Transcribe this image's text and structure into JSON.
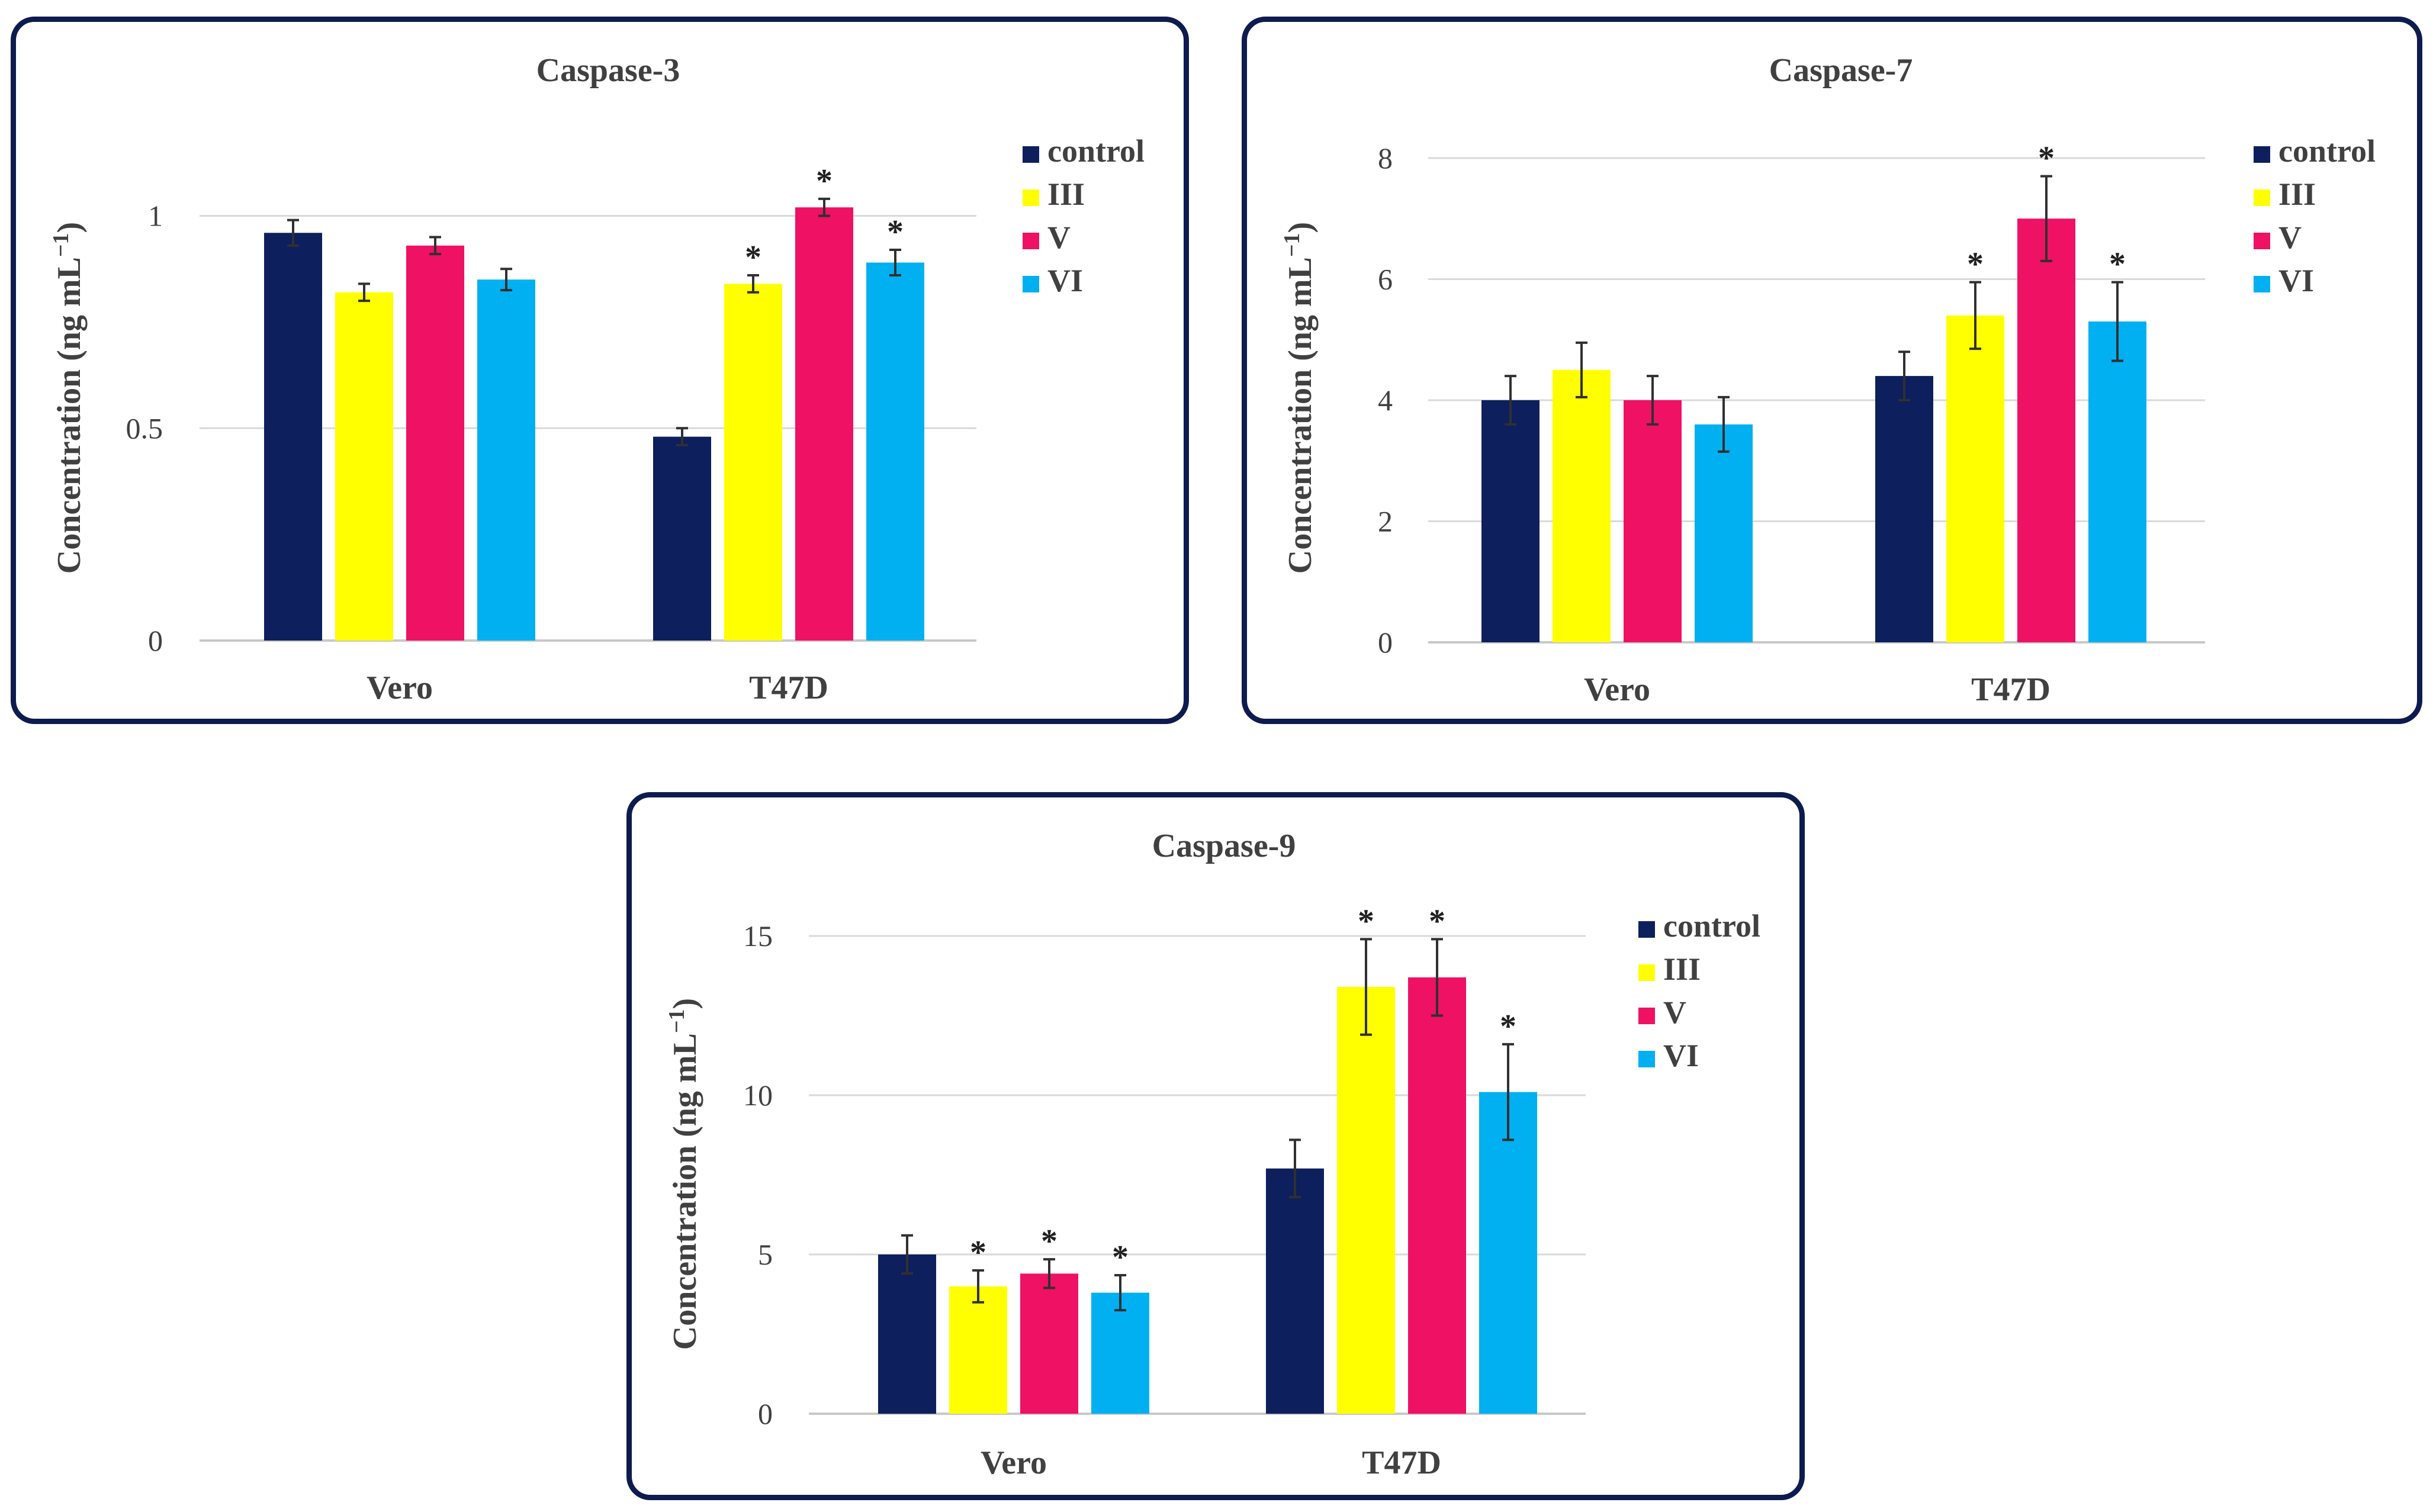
{
  "chart_data": [
    {
      "type": "bar",
      "title": "Caspase-3",
      "ylabel": "Concentration (ng mL",
      "ylabel_sup": "−1",
      "ylabel_close": ")",
      "ylim": [
        0,
        1.15
      ],
      "yticks": [
        0,
        0.5,
        1
      ],
      "ytick_labels": [
        "0",
        "0.5",
        "1"
      ],
      "categories": [
        "Vero",
        "T47D"
      ],
      "series": [
        {
          "name": "control",
          "color": "#0d1f5c",
          "values": [
            0.96,
            0.48
          ],
          "errors": [
            0.03,
            0.02
          ],
          "sig": [
            "",
            ""
          ]
        },
        {
          "name": "III",
          "color": "#ffff00",
          "values": [
            0.82,
            0.84
          ],
          "errors": [
            0.02,
            0.02
          ],
          "sig": [
            "",
            "*"
          ]
        },
        {
          "name": "V",
          "color": "#ee1164",
          "values": [
            0.93,
            1.02
          ],
          "errors": [
            0.02,
            0.02
          ],
          "sig": [
            "",
            "*"
          ]
        },
        {
          "name": "VI",
          "color": "#00b0f0",
          "values": [
            0.85,
            0.89
          ],
          "errors": [
            0.025,
            0.03
          ],
          "sig": [
            "",
            "*"
          ]
        }
      ]
    },
    {
      "type": "bar",
      "title": "Caspase-7",
      "ylabel": "Concentration (ng mL",
      "ylabel_sup": "−1",
      "ylabel_close": ")",
      "ylim": [
        0,
        8
      ],
      "yticks": [
        0,
        2,
        4,
        6,
        8
      ],
      "ytick_labels": [
        "0",
        "2",
        "4",
        "6",
        "8"
      ],
      "categories": [
        "Vero",
        "T47D"
      ],
      "series": [
        {
          "name": "control",
          "color": "#0d1f5c",
          "values": [
            4.0,
            4.4
          ],
          "errors": [
            0.4,
            0.4
          ],
          "sig": [
            "",
            ""
          ]
        },
        {
          "name": "III",
          "color": "#ffff00",
          "values": [
            4.5,
            5.4
          ],
          "errors": [
            0.45,
            0.55
          ],
          "sig": [
            "",
            "*"
          ]
        },
        {
          "name": "V",
          "color": "#ee1164",
          "values": [
            4.0,
            7.0
          ],
          "errors": [
            0.4,
            0.7
          ],
          "sig": [
            "",
            "*"
          ]
        },
        {
          "name": "VI",
          "color": "#00b0f0",
          "values": [
            3.6,
            5.3
          ],
          "errors": [
            0.45,
            0.65
          ],
          "sig": [
            "",
            "*"
          ]
        }
      ]
    },
    {
      "type": "bar",
      "title": "Caspase-9",
      "ylabel": "Concentration (ng mL",
      "ylabel_sup": "−1",
      "ylabel_close": ")",
      "ylim": [
        0,
        15
      ],
      "yticks": [
        0,
        5,
        10,
        15
      ],
      "ytick_labels": [
        "0",
        "5",
        "10",
        "15"
      ],
      "categories": [
        "Vero",
        "T47D"
      ],
      "series": [
        {
          "name": "control",
          "color": "#0d1f5c",
          "values": [
            5.0,
            7.7
          ],
          "errors": [
            0.6,
            0.9
          ],
          "sig": [
            "",
            ""
          ]
        },
        {
          "name": "III",
          "color": "#ffff00",
          "values": [
            4.0,
            13.4
          ],
          "errors": [
            0.5,
            1.5
          ],
          "sig": [
            "*",
            "*"
          ]
        },
        {
          "name": "V",
          "color": "#ee1164",
          "values": [
            4.4,
            13.7
          ],
          "errors": [
            0.45,
            1.2
          ],
          "sig": [
            "*",
            "*"
          ]
        },
        {
          "name": "VI",
          "color": "#00b0f0",
          "values": [
            3.8,
            10.1
          ],
          "errors": [
            0.55,
            1.5
          ],
          "sig": [
            "*",
            "*"
          ]
        }
      ]
    }
  ]
}
